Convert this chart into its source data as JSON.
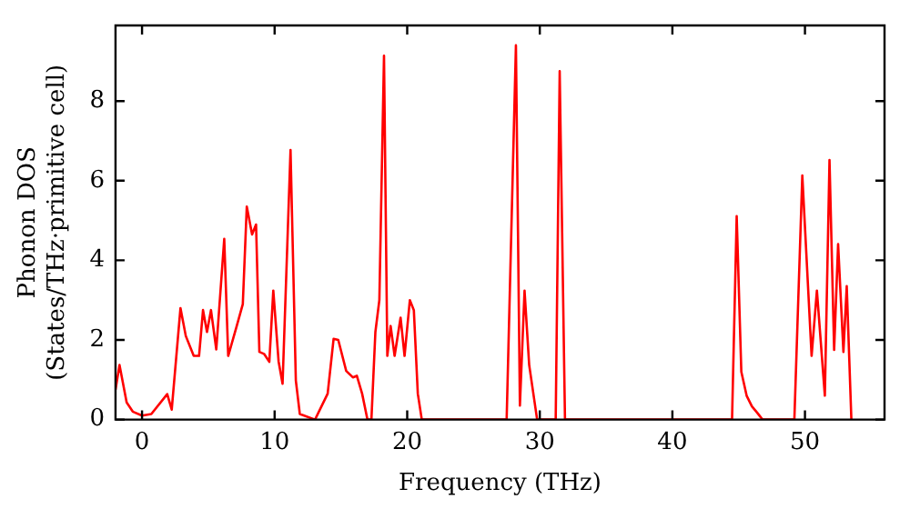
{
  "chart_data": {
    "type": "line",
    "xlabel": "Frequency (THz)",
    "ylabel": "Phonon DOS\n(States/THz·primitive cell)",
    "xlim": [
      -2,
      56
    ],
    "ylim": [
      0,
      9.9
    ],
    "xticks": [
      0,
      10,
      20,
      30,
      40,
      50
    ],
    "yticks": [
      0,
      2,
      4,
      6,
      8
    ],
    "grid": false,
    "legend": false,
    "marker": "none",
    "line_style": "solid",
    "series": [
      {
        "color": "#ff0000",
        "x": [
          -2,
          -1.7,
          -1.16,
          -0.7,
          0,
          0.7,
          1.9,
          2.24,
          2.9,
          3.3,
          3.9,
          4.3,
          4.6,
          4.9,
          5.2,
          5.6,
          6.2,
          6.5,
          7.1,
          7.6,
          7.9,
          8.3,
          8.6,
          8.85,
          9.2,
          9.6,
          9.9,
          10.3,
          10.6,
          11.2,
          11.6,
          11.9,
          13.05,
          14.0,
          14.45,
          14.8,
          15.4,
          15.9,
          16.2,
          16.6,
          17.0,
          17.3,
          17.6,
          17.9,
          18.25,
          18.5,
          18.75,
          19.05,
          19.5,
          19.8,
          20.2,
          20.5,
          20.8,
          21.1,
          27.5,
          28.2,
          28.5,
          28.85,
          29.2,
          29.8,
          31.2,
          31.5,
          31.9,
          44.5,
          44.85,
          45.2,
          45.6,
          46.0,
          46.4,
          46.8,
          49.2,
          49.8,
          50.5,
          50.9,
          51.5,
          51.85,
          52.2,
          52.5,
          52.9,
          53.15,
          53.5
        ],
        "values": [
          0.75,
          1.37,
          0.43,
          0.2,
          0.1,
          0.14,
          0.64,
          0.25,
          2.8,
          2.1,
          1.6,
          1.6,
          2.75,
          2.2,
          2.75,
          1.76,
          4.54,
          1.6,
          2.3,
          2.9,
          5.35,
          4.65,
          4.9,
          1.7,
          1.65,
          1.45,
          3.24,
          1.46,
          0.9,
          6.77,
          0.98,
          0.14,
          0,
          0.65,
          2.03,
          2.0,
          1.22,
          1.06,
          1.1,
          0.65,
          0,
          0,
          2.2,
          3.0,
          9.14,
          1.6,
          2.35,
          1.6,
          2.56,
          1.6,
          3.0,
          2.75,
          0.65,
          0,
          0,
          9.4,
          0.35,
          3.24,
          1.37,
          0,
          0,
          8.75,
          0,
          0,
          5.11,
          1.2,
          0.6,
          0.33,
          0.17,
          0,
          0,
          6.13,
          1.6,
          3.24,
          0.6,
          6.52,
          1.75,
          4.41,
          1.7,
          3.35,
          0
        ]
      }
    ]
  }
}
